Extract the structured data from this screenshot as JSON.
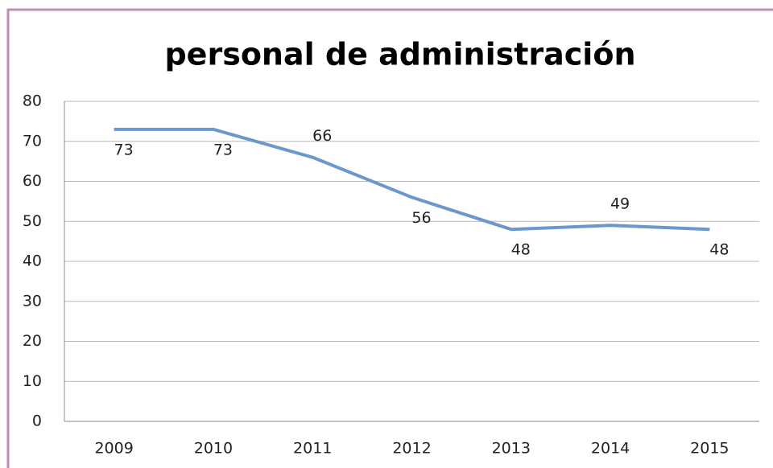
{
  "chart_data": {
    "type": "line",
    "title": "personal de administración",
    "categories": [
      "2009",
      "2010",
      "2011",
      "2012",
      "2013",
      "2014",
      "2015"
    ],
    "series": [
      {
        "name": "personal de administración",
        "color": "#6a98cd",
        "values": [
          73,
          73,
          66,
          56,
          48,
          49,
          48
        ]
      }
    ],
    "ylim": [
      0,
      80
    ],
    "yticks": [
      0,
      10,
      20,
      30,
      40,
      50,
      60,
      70,
      80
    ],
    "grid": true
  }
}
